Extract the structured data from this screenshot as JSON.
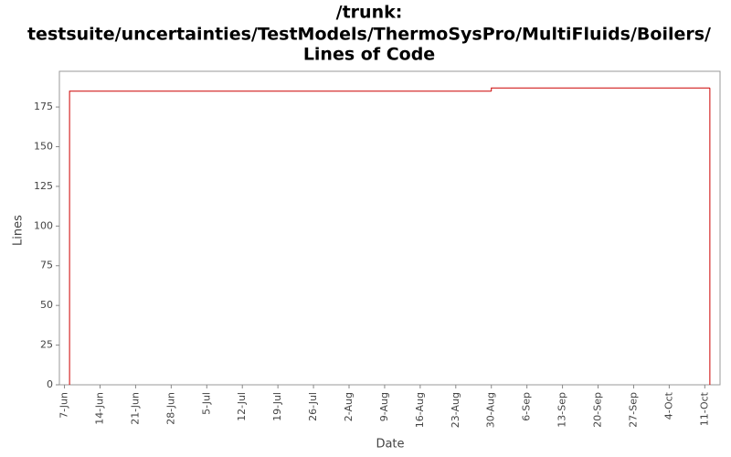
{
  "chart_data": {
    "type": "step",
    "title": [
      "/trunk:",
      "testsuite/uncertainties/TestModels/ThermoSysPro/MultiFluids/Boilers/",
      "Lines of Code"
    ],
    "x_label": "Date",
    "y_label": "Lines",
    "x": [
      "8-Jun",
      "8-Jun",
      "30-Aug",
      "12-Oct"
    ],
    "series": [
      {
        "name": "Lines",
        "color": "#cc0000",
        "values": [
          0,
          185,
          187,
          0
        ]
      }
    ],
    "xlim": [
      "6-Jun",
      "14-Oct"
    ],
    "xticks": [
      "7-Jun",
      "14-Jun",
      "21-Jun",
      "28-Jun",
      "5-Jul",
      "12-Jul",
      "19-Jul",
      "26-Jul",
      "2-Aug",
      "9-Aug",
      "16-Aug",
      "23-Aug",
      "30-Aug",
      "6-Sep",
      "13-Sep",
      "20-Sep",
      "27-Sep",
      "4-Oct",
      "11-Oct"
    ],
    "ylim": [
      0,
      197.5
    ],
    "yticks": [
      0,
      25,
      50,
      75,
      100,
      125,
      150,
      175
    ]
  }
}
